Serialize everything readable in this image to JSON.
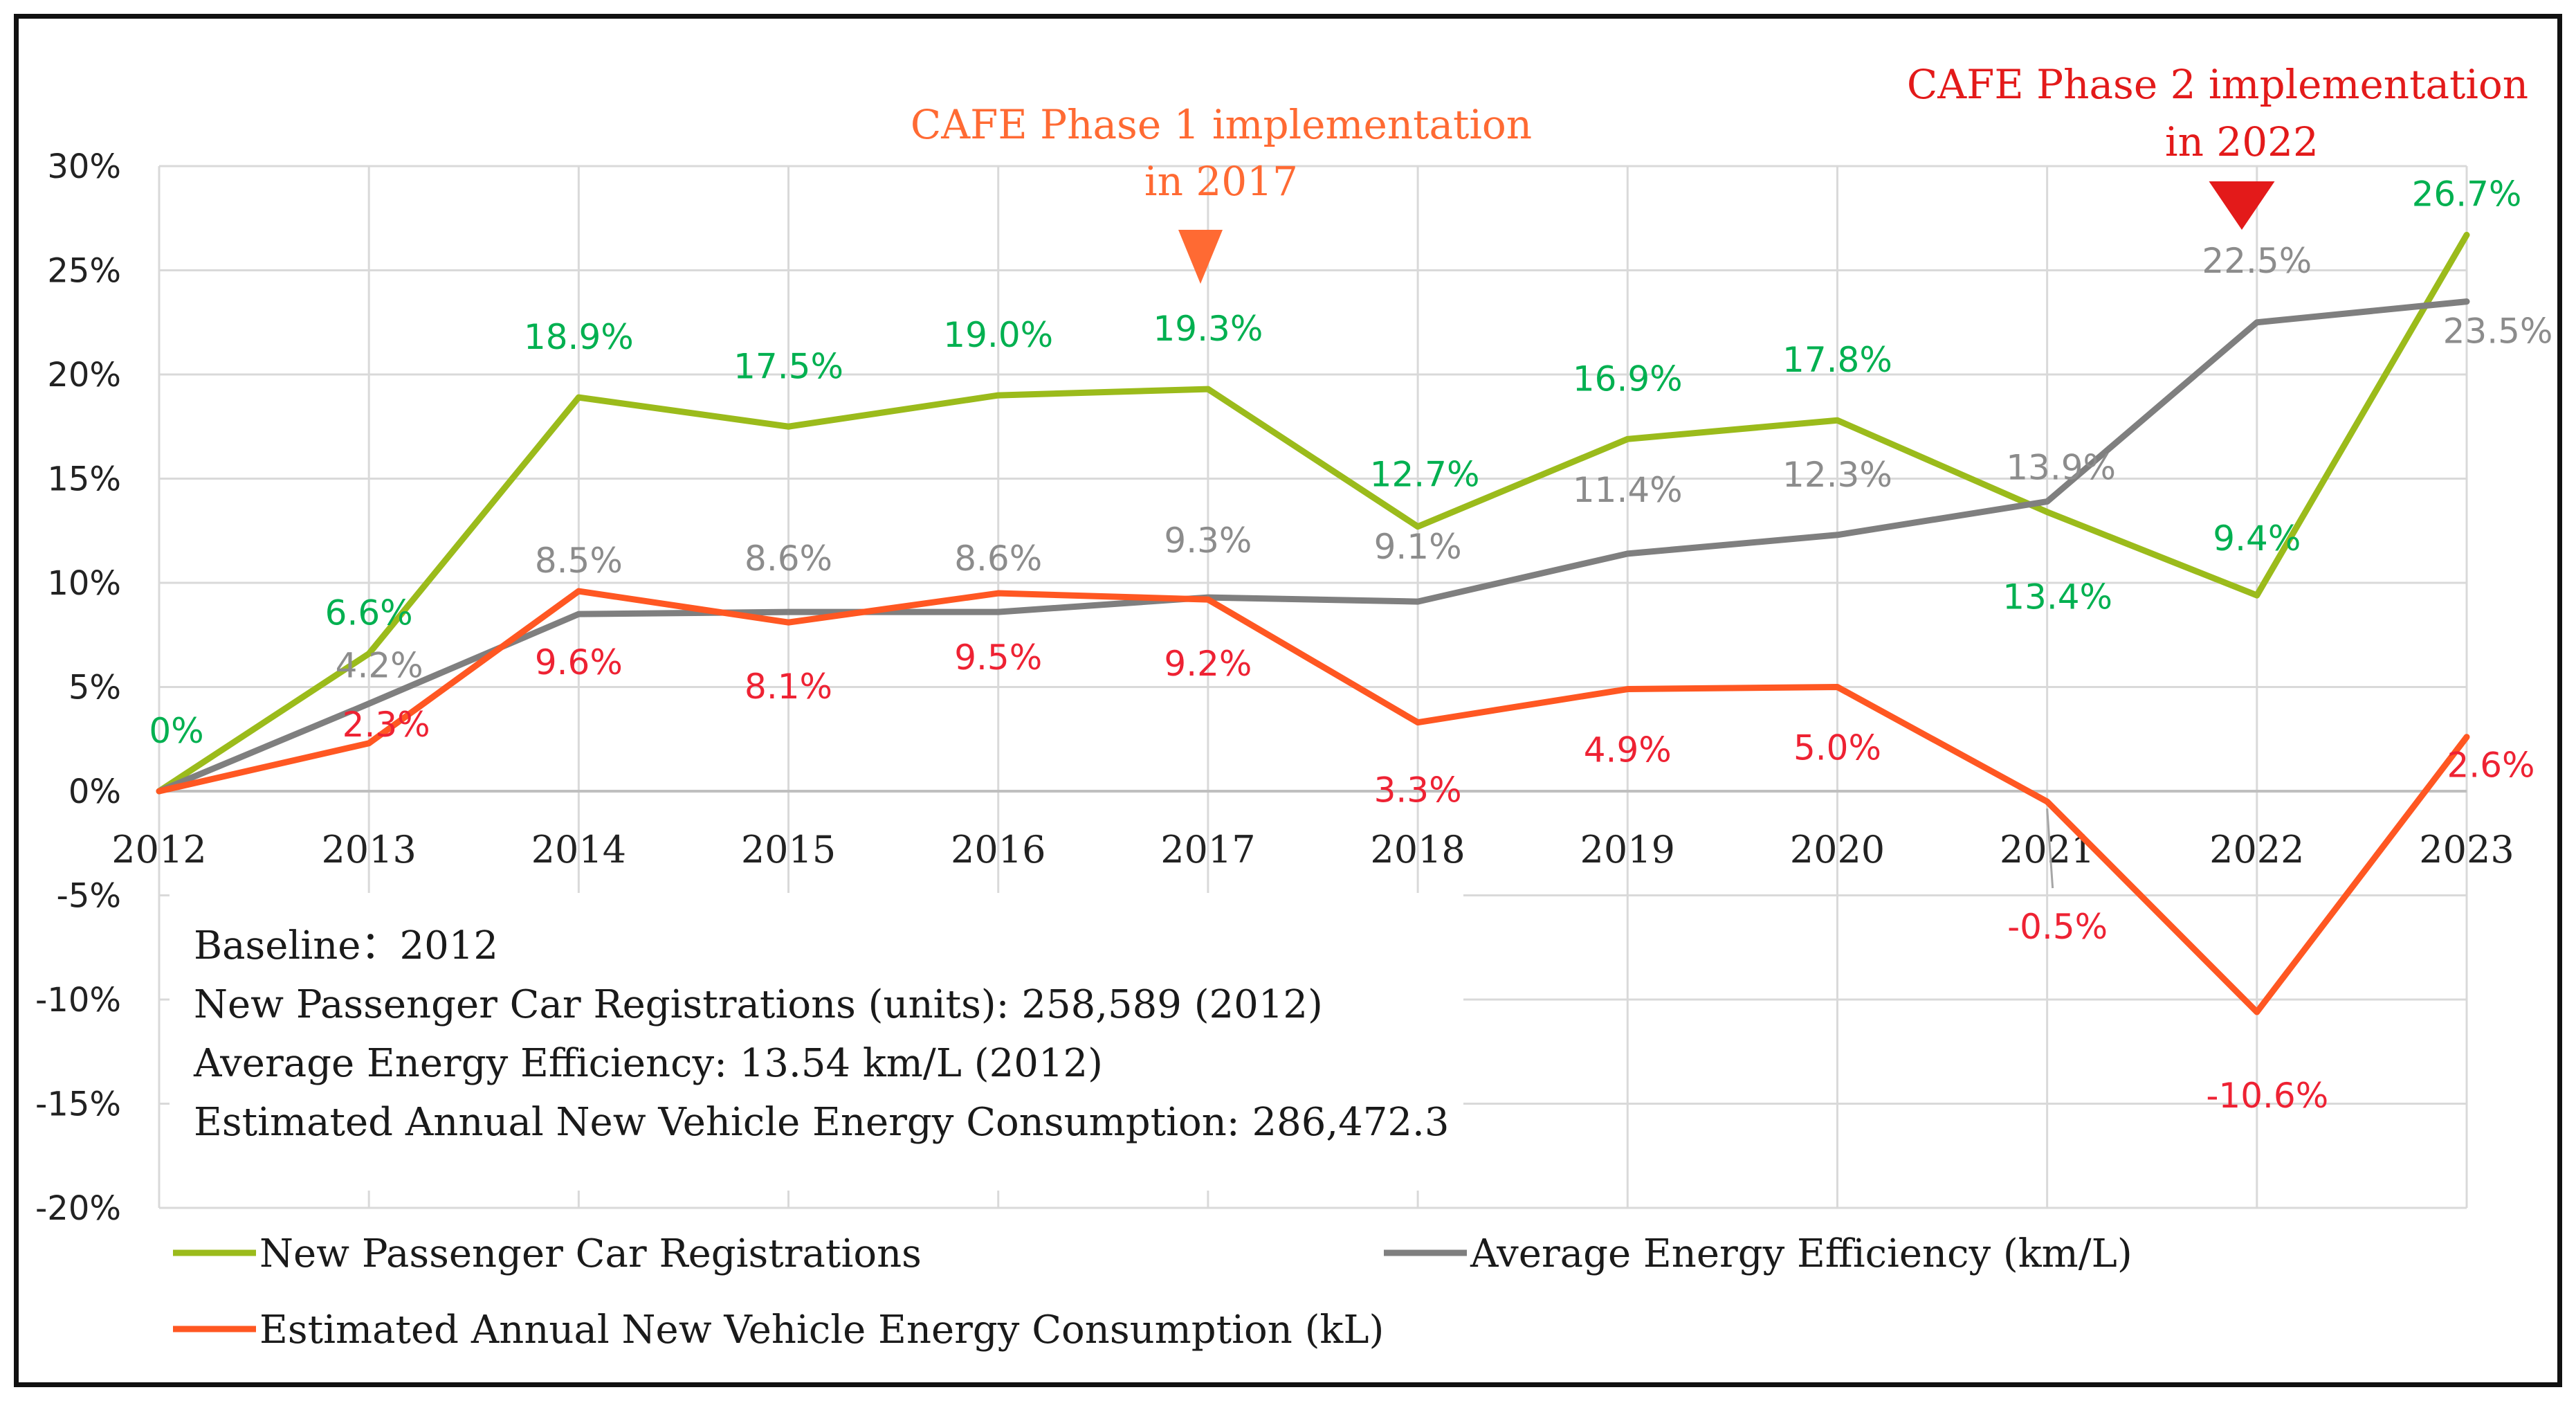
{
  "chart_data": {
    "type": "line",
    "title": "",
    "xlabel": "",
    "ylabel": "",
    "categories": [
      "2012",
      "2013",
      "2014",
      "2015",
      "2016",
      "2017",
      "2018",
      "2019",
      "2020",
      "2021",
      "2022",
      "2023"
    ],
    "ylim": [
      -20,
      30
    ],
    "yticks": [
      -20,
      -15,
      -10,
      -5,
      0,
      5,
      10,
      15,
      20,
      25,
      30
    ],
    "ytick_labels": [
      "-20%",
      "-15%",
      "-10%",
      "-5%",
      "0%",
      "5%",
      "10%",
      "15%",
      "20%",
      "25%",
      "30%"
    ],
    "grid": true,
    "series": [
      {
        "name": "New Passenger Car Registrations",
        "color": "#9BBB1B",
        "label_color": "#00B050",
        "values": [
          0,
          6.6,
          18.9,
          17.5,
          19.0,
          19.3,
          12.7,
          16.9,
          17.8,
          13.4,
          9.4,
          26.7
        ],
        "labels": [
          "0%",
          "6.6%",
          "18.9%",
          "17.5%",
          "19.0%",
          "19.3%",
          "12.7%",
          "16.9%",
          "17.8%",
          "13.4%",
          "9.4%",
          "26.7%"
        ]
      },
      {
        "name": "Average Energy Efficiency (km/L)",
        "color": "#7F7F7F",
        "label_color": "#8C8C8C",
        "values": [
          0,
          4.2,
          8.5,
          8.6,
          8.6,
          9.3,
          9.1,
          11.4,
          12.3,
          13.9,
          22.5,
          23.5
        ],
        "labels": [
          "",
          "4.2%",
          "8.5%",
          "8.6%",
          "8.6%",
          "9.3%",
          "9.1%",
          "11.4%",
          "12.3%",
          "13.9%",
          "22.5%",
          "23.5%"
        ]
      },
      {
        "name": "Estimated Annual New Vehicle Energy Consumption (kL)",
        "color": "#FF5722",
        "label_color": "#EE2233",
        "values": [
          0,
          2.3,
          9.6,
          8.1,
          9.5,
          9.2,
          3.3,
          4.9,
          5.0,
          -0.5,
          -10.6,
          2.6
        ],
        "labels": [
          "",
          "2.3%",
          "9.6%",
          "8.1%",
          "9.5%",
          "9.2%",
          "3.3%",
          "4.9%",
          "5.0%",
          "-0.5%",
          "-10.6%",
          "2.6%"
        ]
      }
    ],
    "annotations": [
      {
        "line1": "CAFE Phase 1 implementation",
        "line2": "in 2017",
        "year": "2017",
        "color": "#FF6A33"
      },
      {
        "line1": "CAFE Phase 2 implementation",
        "line2": "in 2022",
        "year": "2022",
        "color": "#E31A1A"
      }
    ],
    "info_box": [
      "Baseline：2012",
      "New Passenger Car Registrations (units): 258,589 (2012)",
      "Average Energy Efficiency: 13.54 km/L (2012)",
      "Estimated Annual New Vehicle Energy Consumption: 286,472.3"
    ]
  }
}
